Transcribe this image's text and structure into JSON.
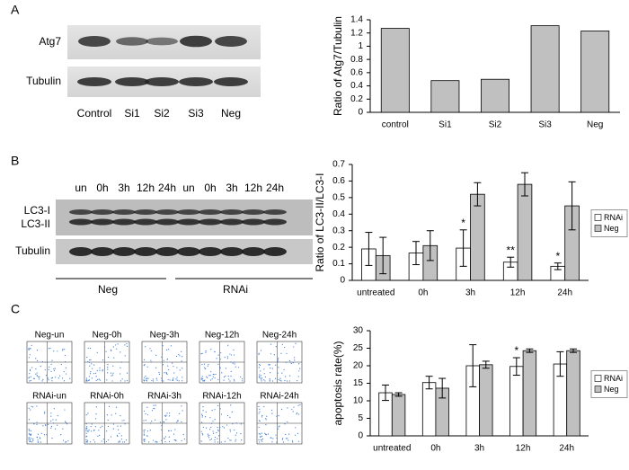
{
  "panel_labels": [
    "A",
    "B",
    "C"
  ],
  "blot_a": {
    "rows": [
      "Atg7",
      "Tubulin"
    ],
    "lanes": [
      "Control",
      "Si1",
      "Si2",
      "Si3",
      "Neg"
    ]
  },
  "blot_b": {
    "rows": [
      "LC3-I",
      "LC3-II",
      "Tubulin"
    ],
    "lanes": [
      "un",
      "0h",
      "3h",
      "12h",
      "24h",
      "un",
      "0h",
      "3h",
      "12h",
      "24h"
    ],
    "groups": [
      "Neg",
      "RNAi"
    ]
  },
  "flow": {
    "panels": [
      "Neg-un",
      "Neg-0h",
      "Neg-3h",
      "Neg-12h",
      "Neg-24h",
      "RNAi-un",
      "RNAi-0h",
      "RNAi-3h",
      "RNAi-12h",
      "RNAi-24h"
    ]
  },
  "chart_data": [
    {
      "type": "bar",
      "y_label": "Ratio of Atg7/Tubulin",
      "categories": [
        "control",
        "Si1",
        "Si2",
        "Si3",
        "Neg"
      ],
      "values": [
        1.27,
        0.48,
        0.5,
        1.31,
        1.23
      ],
      "color": "#c0c0c0",
      "ylim": [
        0,
        1.4
      ],
      "yticks": [
        0,
        0.2,
        0.4,
        0.6,
        0.8,
        1,
        1.2,
        1.4
      ],
      "grid": false
    },
    {
      "type": "bar",
      "y_label": "Ratio of LC3-II/LC3-I",
      "categories": [
        "untreated",
        "0h",
        "3h",
        "12h",
        "24h"
      ],
      "series": [
        {
          "name": "RNAi",
          "color": "#ffffff",
          "values": [
            0.19,
            0.165,
            0.195,
            0.11,
            0.085
          ],
          "errors": [
            0.1,
            0.07,
            0.11,
            0.03,
            0.02
          ],
          "annotations": [
            null,
            null,
            "*",
            "**",
            "*"
          ]
        },
        {
          "name": "Neg",
          "color": "#c0c0c0",
          "values": [
            0.15,
            0.21,
            0.52,
            0.58,
            0.45
          ],
          "errors": [
            0.11,
            0.09,
            0.07,
            0.07,
            0.145
          ]
        }
      ],
      "ylim": [
        0,
        0.7
      ],
      "yticks": [
        0,
        0.1,
        0.2,
        0.3,
        0.4,
        0.5,
        0.6,
        0.7
      ],
      "grid": false,
      "legend": "right"
    },
    {
      "type": "bar",
      "y_label": "apoptosis rate(%)",
      "categories": [
        "untreated",
        "0h",
        "3h",
        "12h",
        "24h"
      ],
      "series": [
        {
          "name": "RNAi",
          "color": "#ffffff",
          "values": [
            12.3,
            15.2,
            20,
            19.8,
            20.5
          ],
          "errors": [
            2.2,
            1.8,
            6,
            2.5,
            3.5
          ],
          "annotations": [
            null,
            null,
            null,
            "*",
            null
          ]
        },
        {
          "name": "Neg",
          "color": "#c0c0c0",
          "values": [
            11.8,
            13.6,
            20.3,
            24.3,
            24.3
          ],
          "errors": [
            0.5,
            2.8,
            1,
            0.5,
            0.5
          ]
        }
      ],
      "ylim": [
        0,
        30
      ],
      "yticks": [
        0,
        5,
        10,
        15,
        20,
        25,
        30
      ],
      "grid": false,
      "legend": "right"
    }
  ]
}
